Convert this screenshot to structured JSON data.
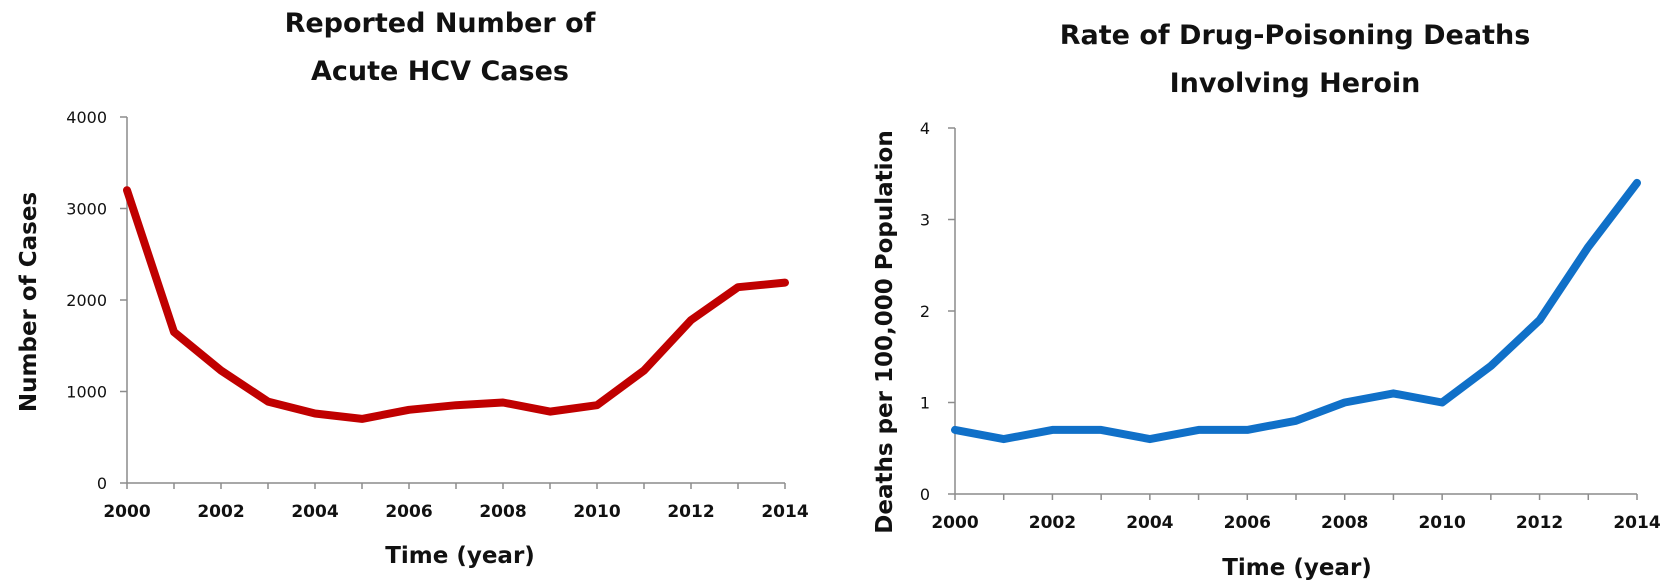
{
  "chart_data": [
    {
      "type": "line",
      "title_lines": [
        "Reported Number of",
        "Acute HCV Cases"
      ],
      "xlabel": "Time (year)",
      "ylabel": "Number of Cases",
      "x": [
        2000,
        2001,
        2002,
        2003,
        2004,
        2005,
        2006,
        2007,
        2008,
        2009,
        2010,
        2011,
        2012,
        2013,
        2014
      ],
      "series": [
        {
          "color": "#c00000",
          "values": [
            3200,
            1650,
            1230,
            890,
            760,
            700,
            800,
            850,
            880,
            780,
            850,
            1230,
            1780,
            2140,
            2190
          ]
        }
      ],
      "xlim": [
        2000,
        2014
      ],
      "ylim": [
        0,
        4000
      ],
      "xticks": [
        "2000",
        "2002",
        "2004",
        "2006",
        "2008",
        "2010",
        "2012",
        "2014"
      ],
      "yticks": [
        "0",
        "1000",
        "2000",
        "3000",
        "4000"
      ],
      "grid": false,
      "legend": "none"
    },
    {
      "type": "line",
      "title_lines": [
        "Rate of Drug-Poisoning Deaths",
        "Involving Heroin"
      ],
      "xlabel": "Time (year)",
      "ylabel": "Deaths per 100,000  Population",
      "x": [
        2000,
        2001,
        2002,
        2003,
        2004,
        2005,
        2006,
        2007,
        2008,
        2009,
        2010,
        2011,
        2012,
        2013,
        2014
      ],
      "series": [
        {
          "color": "#1070c8",
          "values": [
            0.7,
            0.6,
            0.7,
            0.7,
            0.6,
            0.7,
            0.7,
            0.8,
            1.0,
            1.1,
            1.0,
            1.4,
            1.9,
            2.7,
            3.4
          ]
        }
      ],
      "xlim": [
        2000,
        2014
      ],
      "ylim": [
        0,
        4
      ],
      "xticks": [
        "2000",
        "2002",
        "2004",
        "2006",
        "2008",
        "2010",
        "2012",
        "2014"
      ],
      "yticks": [
        "0",
        "1",
        "2",
        "3",
        "4"
      ],
      "grid": false,
      "legend": "none"
    }
  ]
}
